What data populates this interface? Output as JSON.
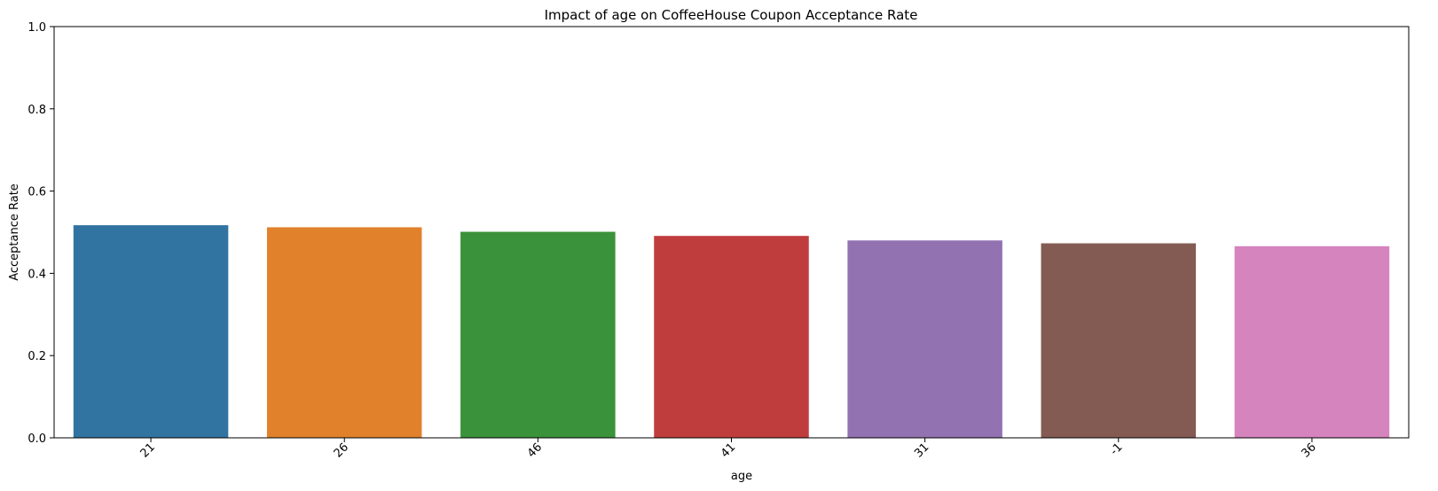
{
  "chart_data": {
    "type": "bar",
    "title": "Impact of age on CoffeeHouse Coupon Acceptance Rate",
    "xlabel": "age",
    "ylabel": "Acceptance Rate",
    "categories": [
      "21",
      "26",
      "46",
      "41",
      "31",
      "-1",
      "36"
    ],
    "values": [
      0.517,
      0.512,
      0.501,
      0.491,
      0.48,
      0.473,
      0.466
    ],
    "colors": [
      "#3274a1",
      "#e1812c",
      "#3a923a",
      "#c03d3e",
      "#9372b2",
      "#845b53",
      "#d684bd"
    ],
    "ylim": [
      0,
      1.0
    ],
    "yticks": [
      "0.0",
      "0.2",
      "0.4",
      "0.6",
      "0.8",
      "1.0"
    ],
    "grid": false,
    "legend": "none"
  }
}
